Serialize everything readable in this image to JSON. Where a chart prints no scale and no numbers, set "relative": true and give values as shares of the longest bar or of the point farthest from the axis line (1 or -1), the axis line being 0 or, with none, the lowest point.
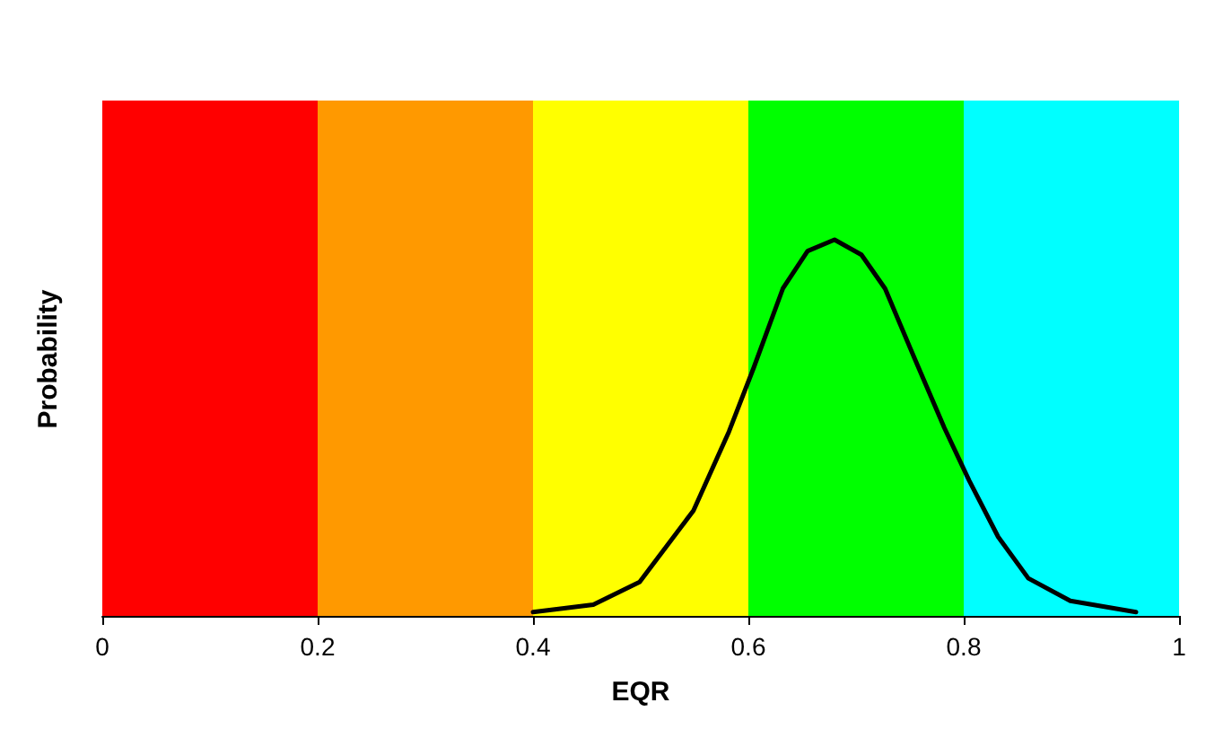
{
  "chart_data": {
    "type": "line",
    "xlabel": "EQR",
    "ylabel": "Probability",
    "relative": true,
    "xlim": [
      0,
      1
    ],
    "xticks": [
      0,
      0.2,
      0.4,
      0.6,
      0.8,
      1
    ],
    "grid": false,
    "marker": "none",
    "line_style": "solid",
    "bands": [
      {
        "axis": "x",
        "from": 0,
        "to": 0.2,
        "color": "#ff0000"
      },
      {
        "axis": "x",
        "from": 0.2,
        "to": 0.4,
        "color": "#ff9900"
      },
      {
        "axis": "x",
        "from": 0.4,
        "to": 0.6,
        "color": "#ffff00"
      },
      {
        "axis": "x",
        "from": 0.6,
        "to": 0.8,
        "color": "#00ff00"
      },
      {
        "axis": "x",
        "from": 0.8,
        "to": 1,
        "color": "#00ffff"
      }
    ],
    "series": [
      {
        "color": "#000000",
        "x": [
          0.4,
          0.456,
          0.499,
          0.549,
          0.582,
          0.605,
          0.632,
          0.655,
          0.68,
          0.705,
          0.727,
          0.755,
          0.782,
          0.805,
          0.832,
          0.86,
          0.899,
          0.96
        ],
        "values": [
          0.01,
          0.03,
          0.09,
          0.28,
          0.49,
          0.66,
          0.87,
          0.97,
          1,
          0.96,
          0.87,
          0.68,
          0.5,
          0.36,
          0.21,
          0.1,
          0.04,
          0.01
        ]
      }
    ]
  }
}
